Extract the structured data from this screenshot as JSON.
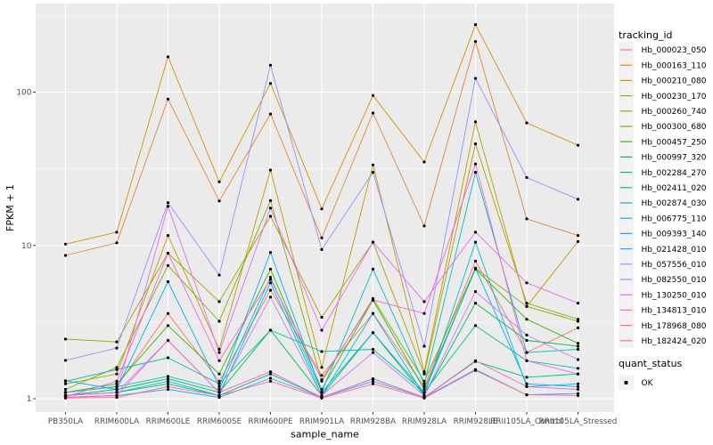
{
  "figure": {
    "kind": "ggplot-line-chart",
    "background": "#FFFFFF",
    "panel_bg": "#EBEBEB",
    "grid_color": "#FFFFFF",
    "tick_color": "#333333",
    "tick_label_color": "#4D4D4D",
    "axis_title_color": "#000000",
    "legend_key_bg": "#F2F2F2",
    "point_color": "#000000"
  },
  "chart_data": {
    "type": "line",
    "title": "",
    "xlabel": "sample_name",
    "ylabel": "FPKM + 1",
    "y_scale": "log10",
    "y_ticks": [
      "1",
      "10",
      "100"
    ],
    "y_minor": [
      3.1623,
      31.623,
      316.23
    ],
    "ylim": [
      0.82,
      378
    ],
    "grid": true,
    "legend_position": "right",
    "categories": [
      "PB350LA",
      "RRIM600LA",
      "RRIM600LE",
      "RRIM600SE",
      "RRIM600PE",
      "RRIM901LA",
      "RRIM928BA",
      "RRIM928LA",
      "RRIM928LE",
      "RRII105LA_Control",
      "RRII105LA_Stressed"
    ],
    "legend_title": "tracking_id",
    "series": [
      {
        "name": "Hb_000023_050",
        "color": "#F8766D",
        "values": [
          1.1,
          1.2,
          3.6,
          1.3,
          5.1,
          1.42,
          3.6,
          1.2,
          7.9,
          2.0,
          2.9
        ]
      },
      {
        "name": "Hb_000163_110",
        "color": "#EA8331",
        "values": [
          8.6,
          10.4,
          90,
          19.5,
          72,
          11.2,
          73,
          13.4,
          214,
          14.9,
          11.6
        ]
      },
      {
        "name": "Hb_000210_080",
        "color": "#D89000",
        "values": [
          10.2,
          12.2,
          170,
          26,
          114,
          17.3,
          95,
          35,
          276,
          63,
          45
        ]
      },
      {
        "name": "Hb_000230_170",
        "color": "#C09B00",
        "values": [
          1.25,
          1.45,
          11.6,
          2.1,
          31,
          1.6,
          33.5,
          1.5,
          64,
          4.0,
          10.6
        ]
      },
      {
        "name": "Hb_000260_740",
        "color": "#A3A500",
        "values": [
          2.45,
          2.35,
          8.9,
          4.3,
          15.5,
          3.4,
          10.5,
          1.45,
          46,
          4.2,
          3.3
        ]
      },
      {
        "name": "Hb_000300_680",
        "color": "#7CAE00",
        "values": [
          1.15,
          1.6,
          7.4,
          3.2,
          19.6,
          1.3,
          4.5,
          1.3,
          7.1,
          4.0,
          3.2
        ]
      },
      {
        "name": "Hb_000457_250",
        "color": "#39B600",
        "values": [
          1.1,
          1.25,
          3.0,
          1.45,
          7.0,
          1.15,
          4.4,
          1.15,
          7.0,
          3.3,
          2.3
        ]
      },
      {
        "name": "Hb_000997_320",
        "color": "#00BB4E",
        "values": [
          1.05,
          1.15,
          1.35,
          1.1,
          2.8,
          1.05,
          2.7,
          1.05,
          4.2,
          2.4,
          2.2
        ]
      },
      {
        "name": "Hb_002284_270",
        "color": "#00BF7D",
        "values": [
          1.05,
          1.1,
          1.25,
          1.05,
          1.45,
          1.02,
          1.35,
          1.02,
          1.75,
          1.38,
          1.45
        ]
      },
      {
        "name": "Hb_002411_020",
        "color": "#00C1A3",
        "values": [
          1.3,
          1.55,
          1.85,
          1.25,
          2.8,
          2.03,
          2.1,
          1.1,
          3.0,
          1.77,
          1.58
        ]
      },
      {
        "name": "Hb_002874_030",
        "color": "#00BFC4",
        "values": [
          1.1,
          1.2,
          1.4,
          1.15,
          6.2,
          1.11,
          7.0,
          1.25,
          30,
          2.0,
          2.1
        ]
      },
      {
        "name": "Hb_006775_110",
        "color": "#00BAE0",
        "values": [
          1.05,
          1.1,
          1.3,
          1.05,
          5.7,
          1.05,
          3.6,
          1.05,
          10.5,
          1.2,
          1.25
        ]
      },
      {
        "name": "Hb_009393_140",
        "color": "#00B0F6",
        "values": [
          1.31,
          1.15,
          5.8,
          1.2,
          9.0,
          1.1,
          2.7,
          1.1,
          7.1,
          1.25,
          1.2
        ]
      },
      {
        "name": "Hb_021428_010",
        "color": "#35A2FF",
        "values": [
          1.02,
          1.05,
          1.15,
          1.02,
          1.36,
          1.02,
          1.3,
          1.02,
          1.55,
          1.06,
          1.08
        ]
      },
      {
        "name": "Hb_057556_010",
        "color": "#9590FF",
        "values": [
          1.78,
          2.14,
          19,
          6.4,
          150,
          9.4,
          30,
          2.2,
          123,
          27.7,
          20
        ]
      },
      {
        "name": "Hb_082550_010",
        "color": "#C77CFF",
        "values": [
          1.05,
          1.1,
          2.4,
          1.1,
          4.6,
          1.05,
          2.0,
          1.05,
          5.0,
          2.6,
          1.8
        ]
      },
      {
        "name": "Hb_130250_010",
        "color": "#E76BF3",
        "values": [
          1.05,
          1.1,
          18,
          2.0,
          17.5,
          2.8,
          10.5,
          4.3,
          12.2,
          5.7,
          4.2
        ]
      },
      {
        "name": "Hb_134813_010",
        "color": "#FA62DB",
        "values": [
          1.03,
          1.3,
          8.9,
          1.77,
          6.0,
          1.33,
          4.4,
          3.6,
          34,
          1.77,
          1.45
        ]
      },
      {
        "name": "Hb_178968_080",
        "color": "#FF62BC",
        "values": [
          1.02,
          1.05,
          2.4,
          1.1,
          1.5,
          1.02,
          1.35,
          1.02,
          1.77,
          1.2,
          1.15
        ]
      },
      {
        "name": "Hb_182424_020",
        "color": "#FF6A98",
        "values": [
          1.01,
          1.02,
          1.2,
          1.05,
          1.3,
          1.01,
          1.25,
          1.01,
          1.53,
          1.06,
          1.05
        ]
      }
    ],
    "quant_legend": {
      "title": "quant_status",
      "items": [
        {
          "label": "OK",
          "marker_color": "#000000"
        }
      ]
    }
  }
}
